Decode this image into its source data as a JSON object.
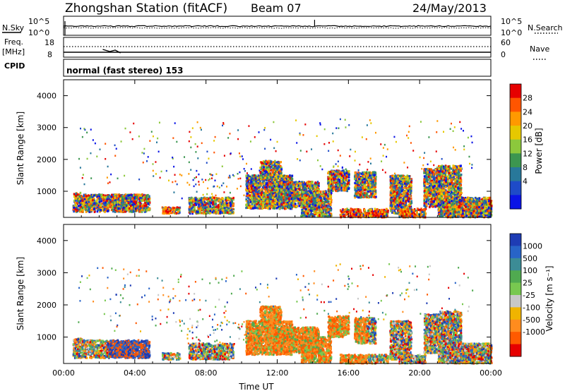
{
  "header": {
    "station": "Zhongshan Station (fitACF)",
    "beam": "Beam 07",
    "date": "24/May/2013"
  },
  "status_panels": {
    "nsky_label": "N.Sky",
    "nsky_ticks": [
      "10^5",
      "10^0"
    ],
    "nsearch_label": "N.Search",
    "nsearch_ticks": [
      "10^5",
      "10^0"
    ],
    "freq_label_1": "Freq.",
    "freq_label_2": "[MHz]",
    "freq_ticks": [
      "18",
      "8"
    ],
    "nave_label": "Nave",
    "nave_ticks": [
      "60",
      "0"
    ],
    "cpid_label": "CPID",
    "cpid_value": "normal (fast stereo) 153"
  },
  "chart_data": [
    {
      "type": "heatmap",
      "name": "power",
      "ylabel": "Slant Range [km]",
      "y_ticks": [
        "4000",
        "3000",
        "2000",
        "1000"
      ],
      "ylim": [
        180,
        4500
      ],
      "x_ticks": [
        "00:00",
        "04:00",
        "08:00",
        "12:00",
        "16:00",
        "20:00",
        "00:00"
      ],
      "xlim_hours": [
        0,
        24
      ],
      "colorbar_label": "Power [dB]",
      "colorbar_ticks": [
        "28",
        "24",
        "20",
        "16",
        "12",
        "8",
        "4"
      ],
      "colorbar_colors": [
        "#e60000",
        "#ff5500",
        "#ff9900",
        "#e6c800",
        "#8cc83c",
        "#3c9650",
        "#28789a",
        "#1e4bc8",
        "#0a14e6"
      ]
    },
    {
      "type": "heatmap",
      "name": "velocity",
      "ylabel": "Slant Range [km]",
      "y_ticks": [
        "4000",
        "3000",
        "2000",
        "1000"
      ],
      "ylim": [
        180,
        4500
      ],
      "x_ticks": [
        "00:00",
        "04:00",
        "08:00",
        "12:00",
        "16:00",
        "20:00",
        "00:00"
      ],
      "xlim_hours": [
        0,
        24
      ],
      "xlabel": "Time UT",
      "colorbar_label": "Velocity [m s⁻¹]",
      "colorbar_ticks": [
        "1000",
        "500",
        "100",
        "25",
        "-25",
        "-100",
        "-500",
        "-1000"
      ],
      "colorbar_colors": [
        "#1e3cb4",
        "#2864c8",
        "#3c8c96",
        "#50aa50",
        "#78c850",
        "#c8c8c8",
        "#f0b400",
        "#ff8c1e",
        "#ff5a00",
        "#e60000"
      ]
    }
  ],
  "scatter_regions": [
    {
      "t0": 0.5,
      "t1": 1.0,
      "r0": 350,
      "r1": 950
    },
    {
      "t0": 1.0,
      "t1": 4.8,
      "r0": 350,
      "r1": 900
    },
    {
      "t0": 2.8,
      "t1": 3.5,
      "r0": 400,
      "r1": 850
    },
    {
      "t0": 5.5,
      "t1": 6.5,
      "r0": 300,
      "r1": 500
    },
    {
      "t0": 7.0,
      "t1": 9.5,
      "r0": 300,
      "r1": 800
    },
    {
      "t0": 10.2,
      "t1": 12.8,
      "r0": 450,
      "r1": 1500
    },
    {
      "t0": 11.0,
      "t1": 12.2,
      "r0": 1400,
      "r1": 1950
    },
    {
      "t0": 11.5,
      "t1": 12.5,
      "r0": 800,
      "r1": 1300
    },
    {
      "t0": 12.5,
      "t1": 14.3,
      "r0": 500,
      "r1": 1300
    },
    {
      "t0": 13.3,
      "t1": 15.0,
      "r0": 200,
      "r1": 1000
    },
    {
      "t0": 14.8,
      "t1": 16.0,
      "r0": 1000,
      "r1": 1650
    },
    {
      "t0": 15.5,
      "t1": 18.2,
      "r0": 180,
      "r1": 450
    },
    {
      "t0": 16.3,
      "t1": 17.5,
      "r0": 800,
      "r1": 1600
    },
    {
      "t0": 18.3,
      "t1": 19.5,
      "r0": 300,
      "r1": 1500
    },
    {
      "t0": 18.8,
      "t1": 20.3,
      "r0": 180,
      "r1": 450
    },
    {
      "t0": 20.2,
      "t1": 21.2,
      "r0": 500,
      "r1": 1700
    },
    {
      "t0": 21.0,
      "t1": 22.3,
      "r0": 200,
      "r1": 1800
    },
    {
      "t0": 21.5,
      "t1": 24.0,
      "r0": 180,
      "r1": 800
    },
    {
      "t0": 22.8,
      "t1": 24.0,
      "r0": 300,
      "r1": 700
    }
  ],
  "sparse_regions": [
    {
      "t0": 0.8,
      "t1": 12.0,
      "r0": 1200,
      "r1": 3200
    },
    {
      "t0": 13.0,
      "t1": 23.0,
      "r0": 1500,
      "r1": 3300
    },
    {
      "t0": 6.0,
      "t1": 11.0,
      "r0": 800,
      "r1": 1600
    }
  ]
}
